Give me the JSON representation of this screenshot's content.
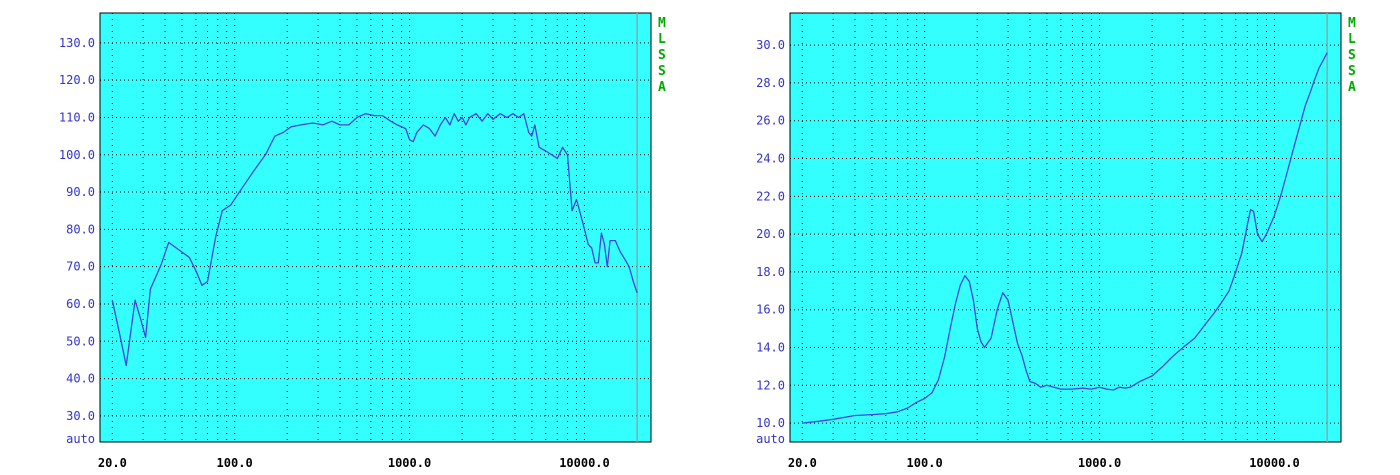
{
  "colors": {
    "plot_bg": "#33ffff",
    "curve": "#4444dd",
    "ytick": "#3333cc",
    "xtick": "#000000",
    "brand": "#00aa00",
    "grid": "#000000",
    "marker": "#88aaaa"
  },
  "brand_letters": [
    "M",
    "L",
    "S",
    "S",
    "A"
  ],
  "chart_data": [
    {
      "type": "line",
      "title": "",
      "xlabel": "",
      "ylabel": "",
      "xscale": "log",
      "xlim": [
        17,
        24000
      ],
      "ylim": [
        23,
        138
      ],
      "grid": true,
      "x_ticks": [
        20,
        100,
        1000,
        10000
      ],
      "x_tick_labels": [
        "20.0",
        "100.0",
        "1000.0",
        "10000.0"
      ],
      "y_ticks": [
        30,
        40,
        50,
        60,
        70,
        80,
        90,
        100,
        110,
        120,
        130
      ],
      "y_tick_labels": [
        "30.0",
        "40.0",
        "50.0",
        "60.0",
        "70.0",
        "80.0",
        "90.0",
        "100.0",
        "110.0",
        "120.0",
        "130.0"
      ],
      "y_bottom_label": "auto",
      "marker_x": 20000,
      "series": [
        {
          "x": [
            20,
            22,
            24,
            27,
            29,
            31,
            33,
            38,
            42,
            48,
            55,
            60,
            65,
            70,
            78,
            85,
            95,
            110,
            130,
            150,
            170,
            190,
            210,
            240,
            280,
            320,
            360,
            400,
            450,
            500,
            560,
            630,
            700,
            780,
            850,
            950,
            1000,
            1050,
            1100,
            1200,
            1300,
            1400,
            1500,
            1600,
            1700,
            1800,
            1900,
            2000,
            2100,
            2200,
            2400,
            2600,
            2800,
            3000,
            3300,
            3600,
            3900,
            4200,
            4500,
            4800,
            5000,
            5200,
            5500,
            6000,
            6500,
            7000,
            7500,
            8000,
            8500,
            9000,
            9500,
            10000,
            10500,
            11000,
            11500,
            12000,
            12500,
            13000,
            13500,
            14000,
            15000,
            16000,
            17000,
            18000,
            19000,
            20000
          ],
          "y": [
            61,
            52,
            43.5,
            61,
            56,
            51,
            64,
            70.5,
            76.5,
            74.5,
            72.5,
            69,
            65,
            66,
            78,
            85,
            86.5,
            91,
            96,
            100,
            105,
            106,
            107.5,
            108,
            108.5,
            108,
            109,
            108,
            108,
            110,
            111,
            110.5,
            110.5,
            109,
            108,
            107,
            104,
            103.5,
            106,
            108,
            107,
            105,
            108,
            110,
            108,
            111,
            109,
            110,
            108,
            110,
            111,
            109,
            111,
            109.5,
            111,
            110,
            111,
            110,
            111,
            106,
            105,
            108,
            102,
            101,
            100,
            99,
            102,
            100,
            85,
            88,
            84,
            80,
            76,
            75,
            71,
            71,
            79,
            76,
            70,
            77,
            77,
            74,
            72,
            70,
            66,
            63
          ]
        }
      ]
    },
    {
      "type": "line",
      "title": "",
      "xlabel": "",
      "ylabel": "",
      "xscale": "log",
      "xlim": [
        17,
        24000
      ],
      "ylim": [
        9.0,
        31.7
      ],
      "grid": true,
      "x_ticks": [
        20,
        100,
        1000,
        10000
      ],
      "x_tick_labels": [
        "20.0",
        "100.0",
        "1000.0",
        "10000.0"
      ],
      "y_ticks": [
        10,
        12,
        14,
        16,
        18,
        20,
        22,
        24,
        26,
        28,
        30
      ],
      "y_tick_labels": [
        "10.0",
        "12.0",
        "14.0",
        "16.0",
        "18.0",
        "20.0",
        "22.0",
        "24.0",
        "26.0",
        "28.0",
        "30.0"
      ],
      "y_bottom_label": "auto",
      "marker_x": 20000,
      "series": [
        {
          "x": [
            20,
            25,
            30,
            40,
            50,
            60,
            70,
            80,
            90,
            100,
            110,
            120,
            130,
            140,
            150,
            160,
            170,
            180,
            190,
            200,
            210,
            220,
            240,
            260,
            280,
            300,
            320,
            340,
            360,
            380,
            400,
            430,
            460,
            500,
            550,
            600,
            700,
            800,
            900,
            1000,
            1100,
            1200,
            1300,
            1400,
            1500,
            1700,
            2000,
            2300,
            2600,
            3000,
            3500,
            4000,
            4500,
            5000,
            5500,
            6000,
            6500,
            7000,
            7300,
            7600,
            8000,
            8500,
            9000,
            10000,
            11000,
            12000,
            13000,
            14000,
            15000,
            16000,
            17000,
            18000,
            19000,
            20000
          ],
          "y": [
            10,
            10.1,
            10.2,
            10.4,
            10.45,
            10.5,
            10.6,
            10.8,
            11.1,
            11.3,
            11.6,
            12.3,
            13.5,
            15,
            16.3,
            17.3,
            17.8,
            17.5,
            16.5,
            15,
            14.3,
            14,
            14.5,
            16,
            16.9,
            16.5,
            15.3,
            14.2,
            13.6,
            12.8,
            12.2,
            12.1,
            11.9,
            12,
            11.9,
            11.8,
            11.8,
            11.85,
            11.8,
            11.9,
            11.8,
            11.75,
            11.9,
            11.85,
            11.9,
            12.2,
            12.5,
            13,
            13.5,
            14,
            14.5,
            15.2,
            15.8,
            16.4,
            17,
            18,
            19,
            20.5,
            21.3,
            21.2,
            20,
            19.6,
            20,
            21,
            22.2,
            23.5,
            24.7,
            25.8,
            26.8,
            27.5,
            28.2,
            28.8,
            29.2,
            29.6
          ]
        }
      ]
    }
  ]
}
